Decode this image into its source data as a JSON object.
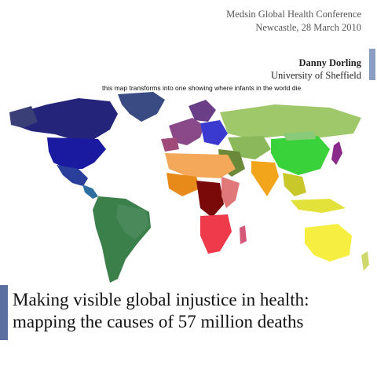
{
  "header": {
    "conference": "Medsin Global Health Conference",
    "location_date": "Newcastle, 28 March 2010"
  },
  "speaker": {
    "name": "Danny Dorling",
    "affiliation": "University of Sheffield"
  },
  "map": {
    "caption": "this map transforms into one showing where infants in the world die"
  },
  "title": {
    "line1": "Making visible global injustice in health:",
    "line2": "mapping the causes of 57 million deaths"
  },
  "colors": {
    "accent": "#8a9ec4",
    "title_bar": "#5a6fa0"
  }
}
